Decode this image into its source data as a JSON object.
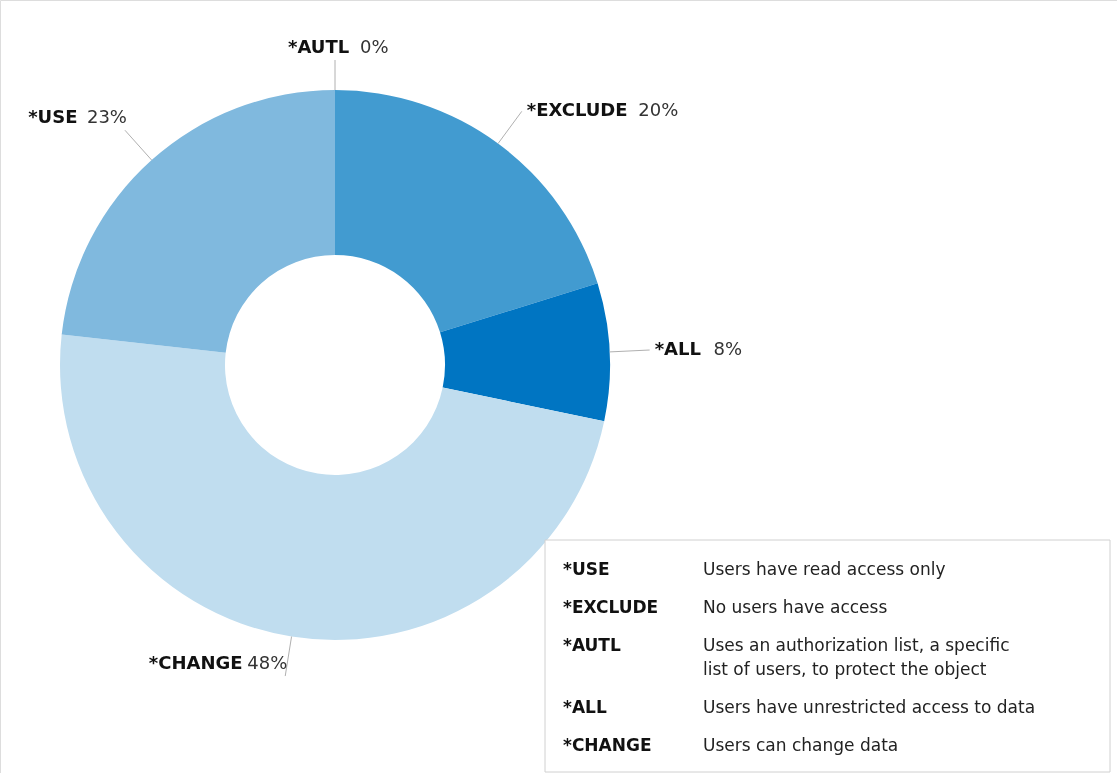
{
  "chart_data": {
    "type": "donut",
    "categories": [
      "*AUTL",
      "*EXCLUDE",
      "*ALL",
      "*CHANGE",
      "*USE"
    ],
    "values": [
      0,
      20,
      8,
      48,
      23
    ],
    "value_labels": [
      "0%",
      "20%",
      "8%",
      "48%",
      "23%"
    ],
    "colors": [
      "#1f5e9a",
      "#429bd0",
      "#0075c2",
      "#c0ddef",
      "#80b9de"
    ],
    "legend": false,
    "annotations": [
      "*USE Users have read access only",
      "*EXCLUDE No users have access",
      "*AUTL Uses an authorization list, a specific list of users, to protect the object",
      "*ALL Users have unrestricted access to data",
      "*CHANGE Users can change data"
    ]
  }
}
